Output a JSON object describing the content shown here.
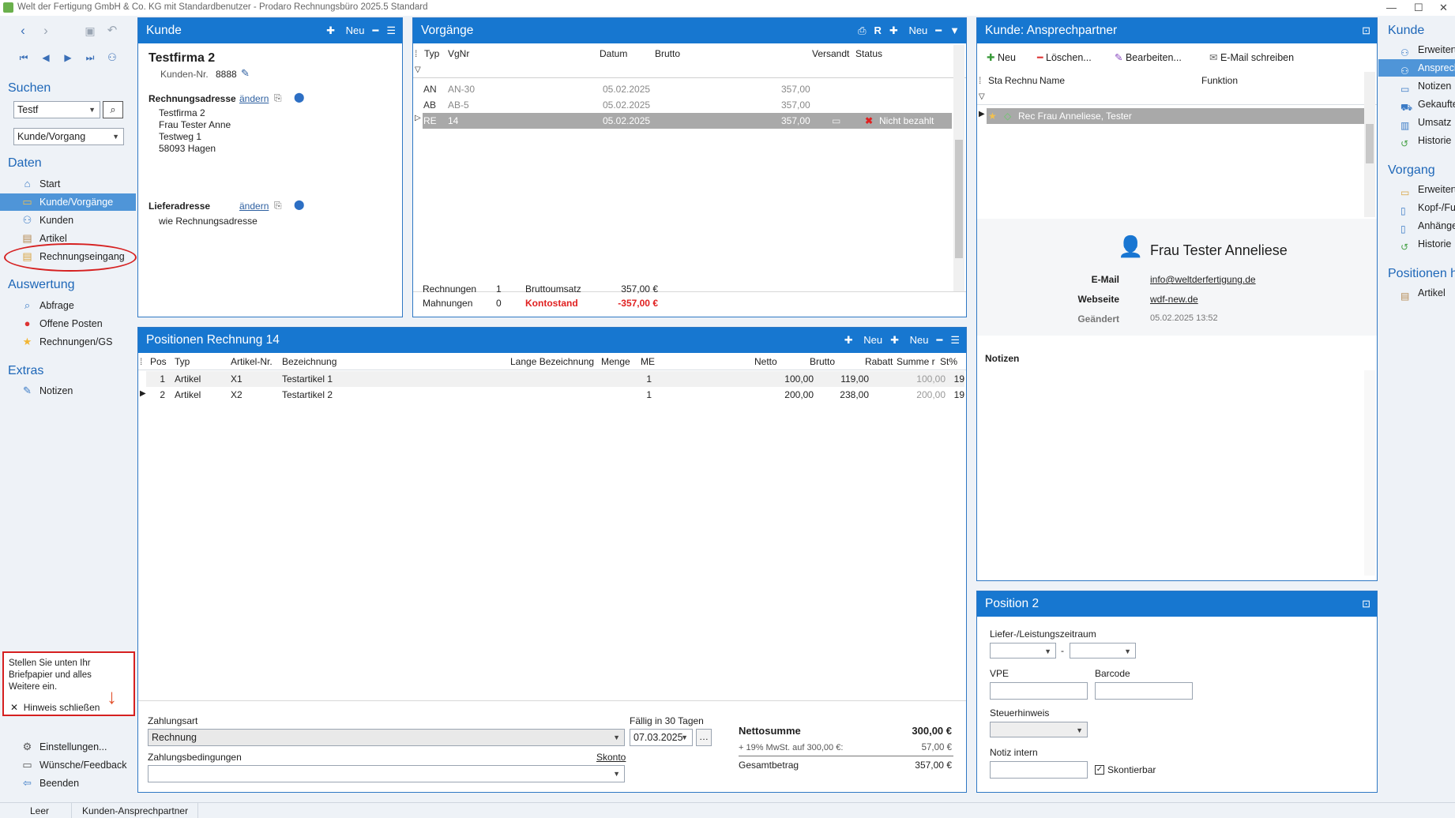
{
  "window": {
    "title": "Welt der Fertigung GmbH & Co. KG mit Standardbenutzer  -  Prodaro Rechnungsbüro 2025.5 Standard"
  },
  "nav": {
    "search_heading": "Suchen",
    "search_value": "Testf",
    "scope_value": "Kunde/Vorgang",
    "daten_heading": "Daten",
    "daten_items": [
      "Start",
      "Kunde/Vorgänge",
      "Kunden",
      "Artikel",
      "Rechnungseingang"
    ],
    "auswertung_heading": "Auswertung",
    "auswertung_items": [
      "Abfrage",
      "Offene Posten",
      "Rechnungen/GS"
    ],
    "extras_heading": "Extras",
    "extras_items": [
      "Notizen"
    ],
    "hint": {
      "text": "Stellen Sie unten Ihr Briefpapier und alles Weitere ein.",
      "close_label": "Hinweis schließen"
    },
    "bottom_items": [
      "Einstellungen...",
      "Wünsche/Feedback",
      "Beenden"
    ]
  },
  "kunde": {
    "title": "Kunde",
    "new_label": "Neu",
    "name": "Testfirma 2",
    "kdnr_label": "Kunden-Nr.",
    "kdnr": "8888",
    "rechnungsadresse_label": "Rechnungsadresse",
    "aendern": "ändern",
    "address": [
      "Testfirma 2",
      "Frau Tester Anne",
      "Testweg 1",
      "58093 Hagen"
    ],
    "lieferadresse_label": "Lieferadresse",
    "lieferadresse": "wie Rechnungsadresse"
  },
  "vorgaenge": {
    "title": "Vorgänge",
    "r_label": "R",
    "new_label": "Neu",
    "columns": [
      "Typ",
      "VgNr",
      "Datum",
      "Brutto",
      "Versandt",
      "Status"
    ],
    "rows": [
      {
        "typ": "AN",
        "nr": "AN-30",
        "datum": "05.02.2025",
        "brutto": "357,00",
        "status": ""
      },
      {
        "typ": "AB",
        "nr": "AB-5",
        "datum": "05.02.2025",
        "brutto": "357,00",
        "status": ""
      },
      {
        "typ": "RE",
        "nr": "14",
        "datum": "05.02.2025",
        "brutto": "357,00",
        "status": "Nicht bezahlt"
      }
    ],
    "summary": {
      "rechnungen_label": "Rechnungen",
      "rechnungen": "1",
      "mahnungen_label": "Mahnungen",
      "mahnungen": "0",
      "umsatz_label": "Bruttoumsatz",
      "umsatz": "357,00 €",
      "konto_label": "Kontostand",
      "konto": "-357,00 €"
    }
  },
  "ansprech": {
    "title": "Kunde: Ansprechpartner",
    "toolbar": {
      "new": "Neu",
      "delete": "Löschen...",
      "edit": "Bearbeiten...",
      "email": "E-Mail schreiben"
    },
    "columns": [
      "Sta",
      "Rechnu",
      "Name",
      "Funktion"
    ],
    "row": "Rec Frau Anneliese, Tester",
    "contact_name": "Frau Tester Anneliese",
    "email_label": "E-Mail",
    "email": "info@weltderfertigung.de",
    "web_label": "Webseite",
    "web": "wdf-new.de",
    "changed_label": "Geändert",
    "changed": "05.02.2025 13:52",
    "notes_label": "Notizen"
  },
  "positionen": {
    "title": "Positionen Rechnung 14",
    "new_label": "Neu",
    "columns": [
      "Pos",
      "Typ",
      "Artikel-Nr.",
      "Bezeichnung",
      "Lange Bezeichnung",
      "Menge",
      "ME",
      "Netto",
      "Brutto",
      "Rabatt",
      "Summe r",
      "St%"
    ],
    "rows": [
      {
        "pos": "1",
        "typ": "Artikel",
        "nr": "X1",
        "bez": "Testartikel 1",
        "menge": "1",
        "netto": "100,00",
        "brutto": "119,00",
        "summe": "100,00",
        "st": "19"
      },
      {
        "pos": "2",
        "typ": "Artikel",
        "nr": "X2",
        "bez": "Testartikel 2",
        "menge": "1",
        "netto": "200,00",
        "brutto": "238,00",
        "summe": "200,00",
        "st": "19"
      }
    ],
    "zahlungsart_label": "Zahlungsart",
    "zahlungsart": "Rechnung",
    "faellig_label": "Fällig in 30 Tagen",
    "faellig": "07.03.2025",
    "bedingungen_label": "Zahlungsbedingungen",
    "skonto": "Skonto",
    "netto_label": "Nettosumme",
    "netto": "300,00  €",
    "mwst_label": "+ 19% MwSt. auf 300,00 €:",
    "mwst": "57,00  €",
    "gesamt_label": "Gesamtbetrag",
    "gesamt": "357,00  €"
  },
  "position2": {
    "title": "Position 2",
    "zeitraum_label": "Liefer-/Leistungszeitraum",
    "dash": "-",
    "vpe_label": "VPE",
    "barcode_label": "Barcode",
    "steuer_label": "Steuerhinweis",
    "notiz_label": "Notiz intern",
    "skontierbar_label": "Skontierbar"
  },
  "rightbar": {
    "kunde_heading": "Kunde",
    "kunde_items": [
      "Erweitert",
      "Ansprech",
      "Notizen",
      "Gekaufte",
      "Umsatz",
      "Historie"
    ],
    "vorgang_heading": "Vorgang",
    "vorgang_items": [
      "Erweitert",
      "Kopf-/Fu",
      "Anhänge",
      "Historie"
    ],
    "positionen_heading": "Positionen hi",
    "positionen_items": [
      "Artikel"
    ]
  },
  "status": {
    "left": "Leer",
    "right": "Kunden-Ansprechpartner"
  },
  "colors": {
    "accent": "#1777d0",
    "selected": "#4f95d8",
    "alert": "#e02020"
  }
}
